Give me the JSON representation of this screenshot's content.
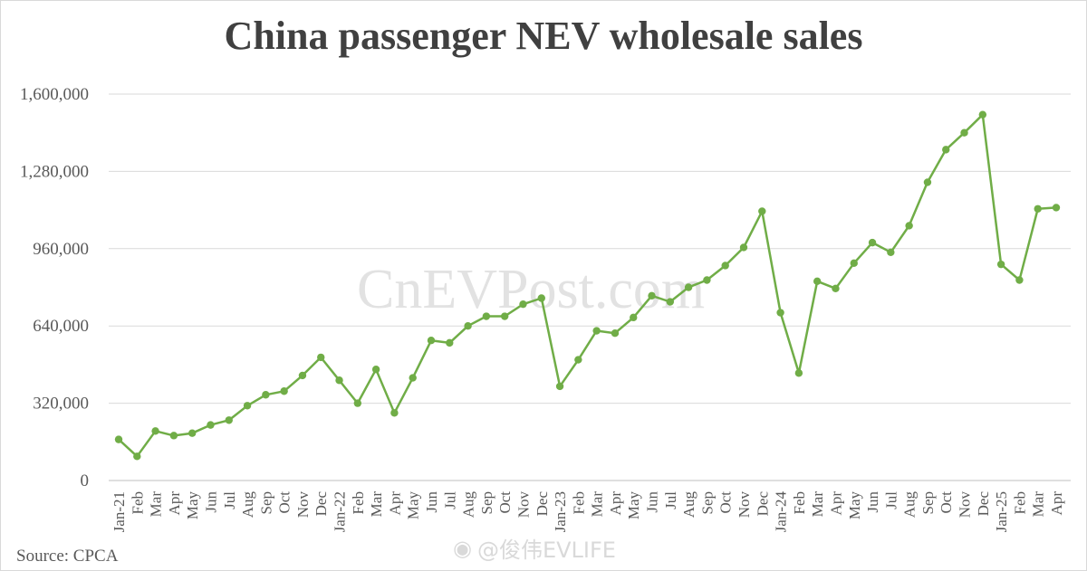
{
  "chart_data": {
    "type": "line",
    "title": "China passenger NEV wholesale sales",
    "xlabel": "",
    "ylabel": "",
    "ylim": [
      0,
      1600000
    ],
    "yticks": [
      "0",
      "320,000",
      "640,000",
      "960,000",
      "1,280,000",
      "1,600,000"
    ],
    "grid": true,
    "legend": "none",
    "line_color": "#70ad47",
    "categories": [
      "Jan-21",
      "Feb",
      "Mar",
      "Apr",
      "May",
      "Jun",
      "Jul",
      "Aug",
      "Sep",
      "Oct",
      "Nov",
      "Dec",
      "Jan-22",
      "Feb",
      "Mar",
      "Apr",
      "May",
      "Jun",
      "Jul",
      "Aug",
      "Sep",
      "Oct",
      "Nov",
      "Dec",
      "Jan-23",
      "Feb",
      "Mar",
      "Apr",
      "May",
      "Jun",
      "Jul",
      "Aug",
      "Sep",
      "Oct",
      "Nov",
      "Dec",
      "Jan-24",
      "Feb",
      "Mar",
      "Apr",
      "May",
      "Jun",
      "Jul",
      "Aug",
      "Sep",
      "Oct",
      "Nov",
      "Dec",
      "Jan-25",
      "Feb",
      "Mar",
      "Apr"
    ],
    "values": [
      170000,
      100000,
      205000,
      186000,
      196000,
      230000,
      250000,
      310000,
      355000,
      370000,
      435000,
      510000,
      415000,
      320000,
      460000,
      280000,
      425000,
      580000,
      570000,
      640000,
      680000,
      680000,
      730000,
      755000,
      390000,
      500000,
      620000,
      610000,
      675000,
      765000,
      740000,
      800000,
      830000,
      890000,
      965000,
      1115000,
      695000,
      445000,
      825000,
      795000,
      900000,
      985000,
      945000,
      1055000,
      1235000,
      1370000,
      1440000,
      1515000,
      895000,
      830000,
      1125000,
      1130000
    ]
  },
  "footer": {
    "source": "Source: CPCA",
    "weibo_handle": "@俊伟EVLIFE"
  },
  "watermark": "CnEVPost.com"
}
